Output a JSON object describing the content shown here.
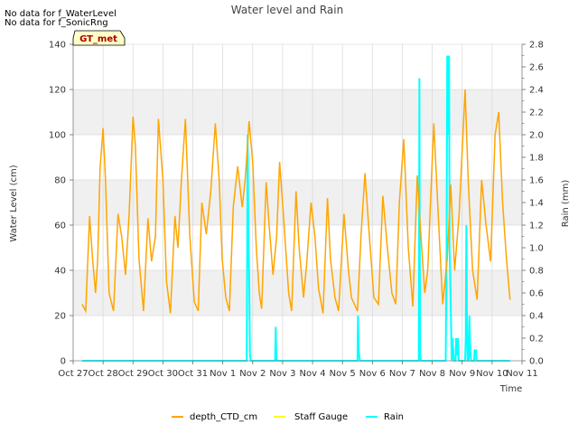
{
  "chart_data": {
    "type": "line",
    "title": "Water level and Rain",
    "xlabel": "Time",
    "ylabel_left": "Water Level (cm)",
    "ylabel_right": "Rain (mm)",
    "ylim_left": [
      0,
      140
    ],
    "ylim_right": [
      0,
      2.8
    ],
    "xlim_days": [
      0,
      15
    ],
    "yticks_left": [
      0,
      20,
      40,
      60,
      80,
      100,
      120,
      140
    ],
    "yticks_right": [
      0.0,
      0.2,
      0.4,
      0.6,
      0.8,
      1.0,
      1.2,
      1.4,
      1.6,
      1.8,
      2.0,
      2.2,
      2.4,
      2.6,
      2.8
    ],
    "x_ticks": [
      {
        "day": 0,
        "label": "Oct 27"
      },
      {
        "day": 1,
        "label": "Oct 28"
      },
      {
        "day": 2,
        "label": "Oct 29"
      },
      {
        "day": 3,
        "label": "Oct 30"
      },
      {
        "day": 4,
        "label": "Oct 31"
      },
      {
        "day": 5,
        "label": "Nov 1"
      },
      {
        "day": 6,
        "label": "Nov 2"
      },
      {
        "day": 7,
        "label": "Nov 3"
      },
      {
        "day": 8,
        "label": "Nov 4"
      },
      {
        "day": 9,
        "label": "Nov 5"
      },
      {
        "day": 10,
        "label": "Nov 6"
      },
      {
        "day": 11,
        "label": "Nov 7"
      },
      {
        "day": 12,
        "label": "Nov 8"
      },
      {
        "day": 13,
        "label": "Nov 9"
      },
      {
        "day": 14,
        "label": "Nov 10"
      },
      {
        "day": 15,
        "label": "Nov 11"
      }
    ],
    "notes": [
      "No data for f_WaterLevel",
      "No data for f_SonicRng"
    ],
    "badge": "GT_met",
    "legend": [
      {
        "name": "depth_CTD_cm",
        "color": "#FFA500"
      },
      {
        "name": "Staff Gauge",
        "color": "#FFFF00"
      },
      {
        "name": "Rain",
        "color": "#00FFFF"
      }
    ],
    "series": [
      {
        "name": "depth_CTD_cm",
        "axis": "left",
        "color": "#FFA500",
        "x": [
          0.3,
          0.42,
          0.55,
          0.65,
          0.75,
          0.82,
          0.9,
          1.0,
          1.08,
          1.2,
          1.35,
          1.5,
          1.62,
          1.75,
          1.87,
          2.0,
          2.08,
          2.2,
          2.35,
          2.5,
          2.62,
          2.75,
          2.85,
          3.0,
          3.12,
          3.25,
          3.4,
          3.5,
          3.62,
          3.75,
          3.9,
          4.05,
          4.18,
          4.3,
          4.45,
          4.6,
          4.75,
          4.88,
          4.98,
          5.1,
          5.22,
          5.35,
          5.5,
          5.65,
          5.75,
          5.88,
          6.0,
          6.12,
          6.22,
          6.3,
          6.45,
          6.55,
          6.68,
          6.8,
          6.9,
          7.05,
          7.2,
          7.3,
          7.45,
          7.55,
          7.7,
          7.8,
          7.95,
          8.08,
          8.2,
          8.35,
          8.5,
          8.6,
          8.75,
          8.87,
          9.05,
          9.2,
          9.3,
          9.5,
          9.62,
          9.75,
          9.9,
          10.05,
          10.2,
          10.35,
          10.5,
          10.65,
          10.78,
          10.9,
          11.05,
          11.2,
          11.35,
          11.5,
          11.6,
          11.75,
          11.85,
          12.05,
          12.2,
          12.35,
          12.5,
          12.62,
          12.75,
          12.9,
          13.1,
          13.2,
          13.35,
          13.5,
          13.65,
          13.8,
          13.95,
          14.1,
          14.22,
          14.35,
          14.48,
          14.6
        ],
        "y": [
          25,
          22,
          64,
          45,
          30,
          45,
          85,
          103,
          80,
          30,
          22,
          65,
          55,
          38,
          65,
          108,
          95,
          45,
          22,
          63,
          44,
          55,
          107,
          80,
          35,
          21,
          64,
          50,
          80,
          107,
          55,
          26,
          22,
          70,
          56,
          75,
          105,
          80,
          45,
          28,
          22,
          68,
          86,
          68,
          80,
          106,
          88,
          50,
          30,
          23,
          79,
          60,
          38,
          55,
          88,
          60,
          30,
          22,
          75,
          50,
          28,
          42,
          70,
          55,
          32,
          21,
          72,
          45,
          28,
          22,
          65,
          40,
          28,
          22,
          55,
          83,
          55,
          28,
          25,
          73,
          50,
          30,
          25,
          70,
          98,
          50,
          24,
          82,
          60,
          30,
          40,
          105,
          65,
          25,
          45,
          78,
          40,
          65,
          120,
          80,
          40,
          27,
          80,
          60,
          44,
          100,
          110,
          70,
          45,
          27
        ]
      },
      {
        "name": "Rain",
        "axis": "right",
        "color": "#00FFFF",
        "x": [
          0.3,
          5.8,
          5.83,
          5.86,
          5.88,
          5.91,
          5.94,
          6.75,
          6.77,
          6.79,
          6.81,
          9.5,
          9.52,
          9.54,
          9.56,
          9.58,
          11.55,
          11.57,
          11.58,
          11.6,
          11.62,
          12.45,
          12.48,
          12.5,
          12.53,
          12.56,
          12.58,
          12.62,
          12.65,
          12.68,
          12.72,
          12.78,
          12.8,
          12.83,
          12.86,
          12.88,
          13.1,
          13.12,
          13.14,
          13.16,
          13.18,
          13.22,
          13.24,
          13.26,
          13.28,
          13.3,
          13.4,
          13.42,
          13.44,
          13.46,
          13.48,
          14.6
        ],
        "y": [
          0,
          0,
          2.0,
          1.0,
          0.8,
          0.05,
          0,
          0,
          0.3,
          0.05,
          0,
          0,
          0.4,
          0.1,
          0.05,
          0,
          0,
          2.5,
          1.2,
          0.05,
          0,
          0,
          1.0,
          2.7,
          2.0,
          2.7,
          1.0,
          0.5,
          0,
          0.2,
          0,
          0,
          0.2,
          0.05,
          0.2,
          0,
          0,
          0.2,
          1.2,
          0.4,
          0,
          0,
          0.4,
          0.2,
          0.05,
          0,
          0,
          0.1,
          0.05,
          0.1,
          0,
          0
        ]
      }
    ]
  }
}
